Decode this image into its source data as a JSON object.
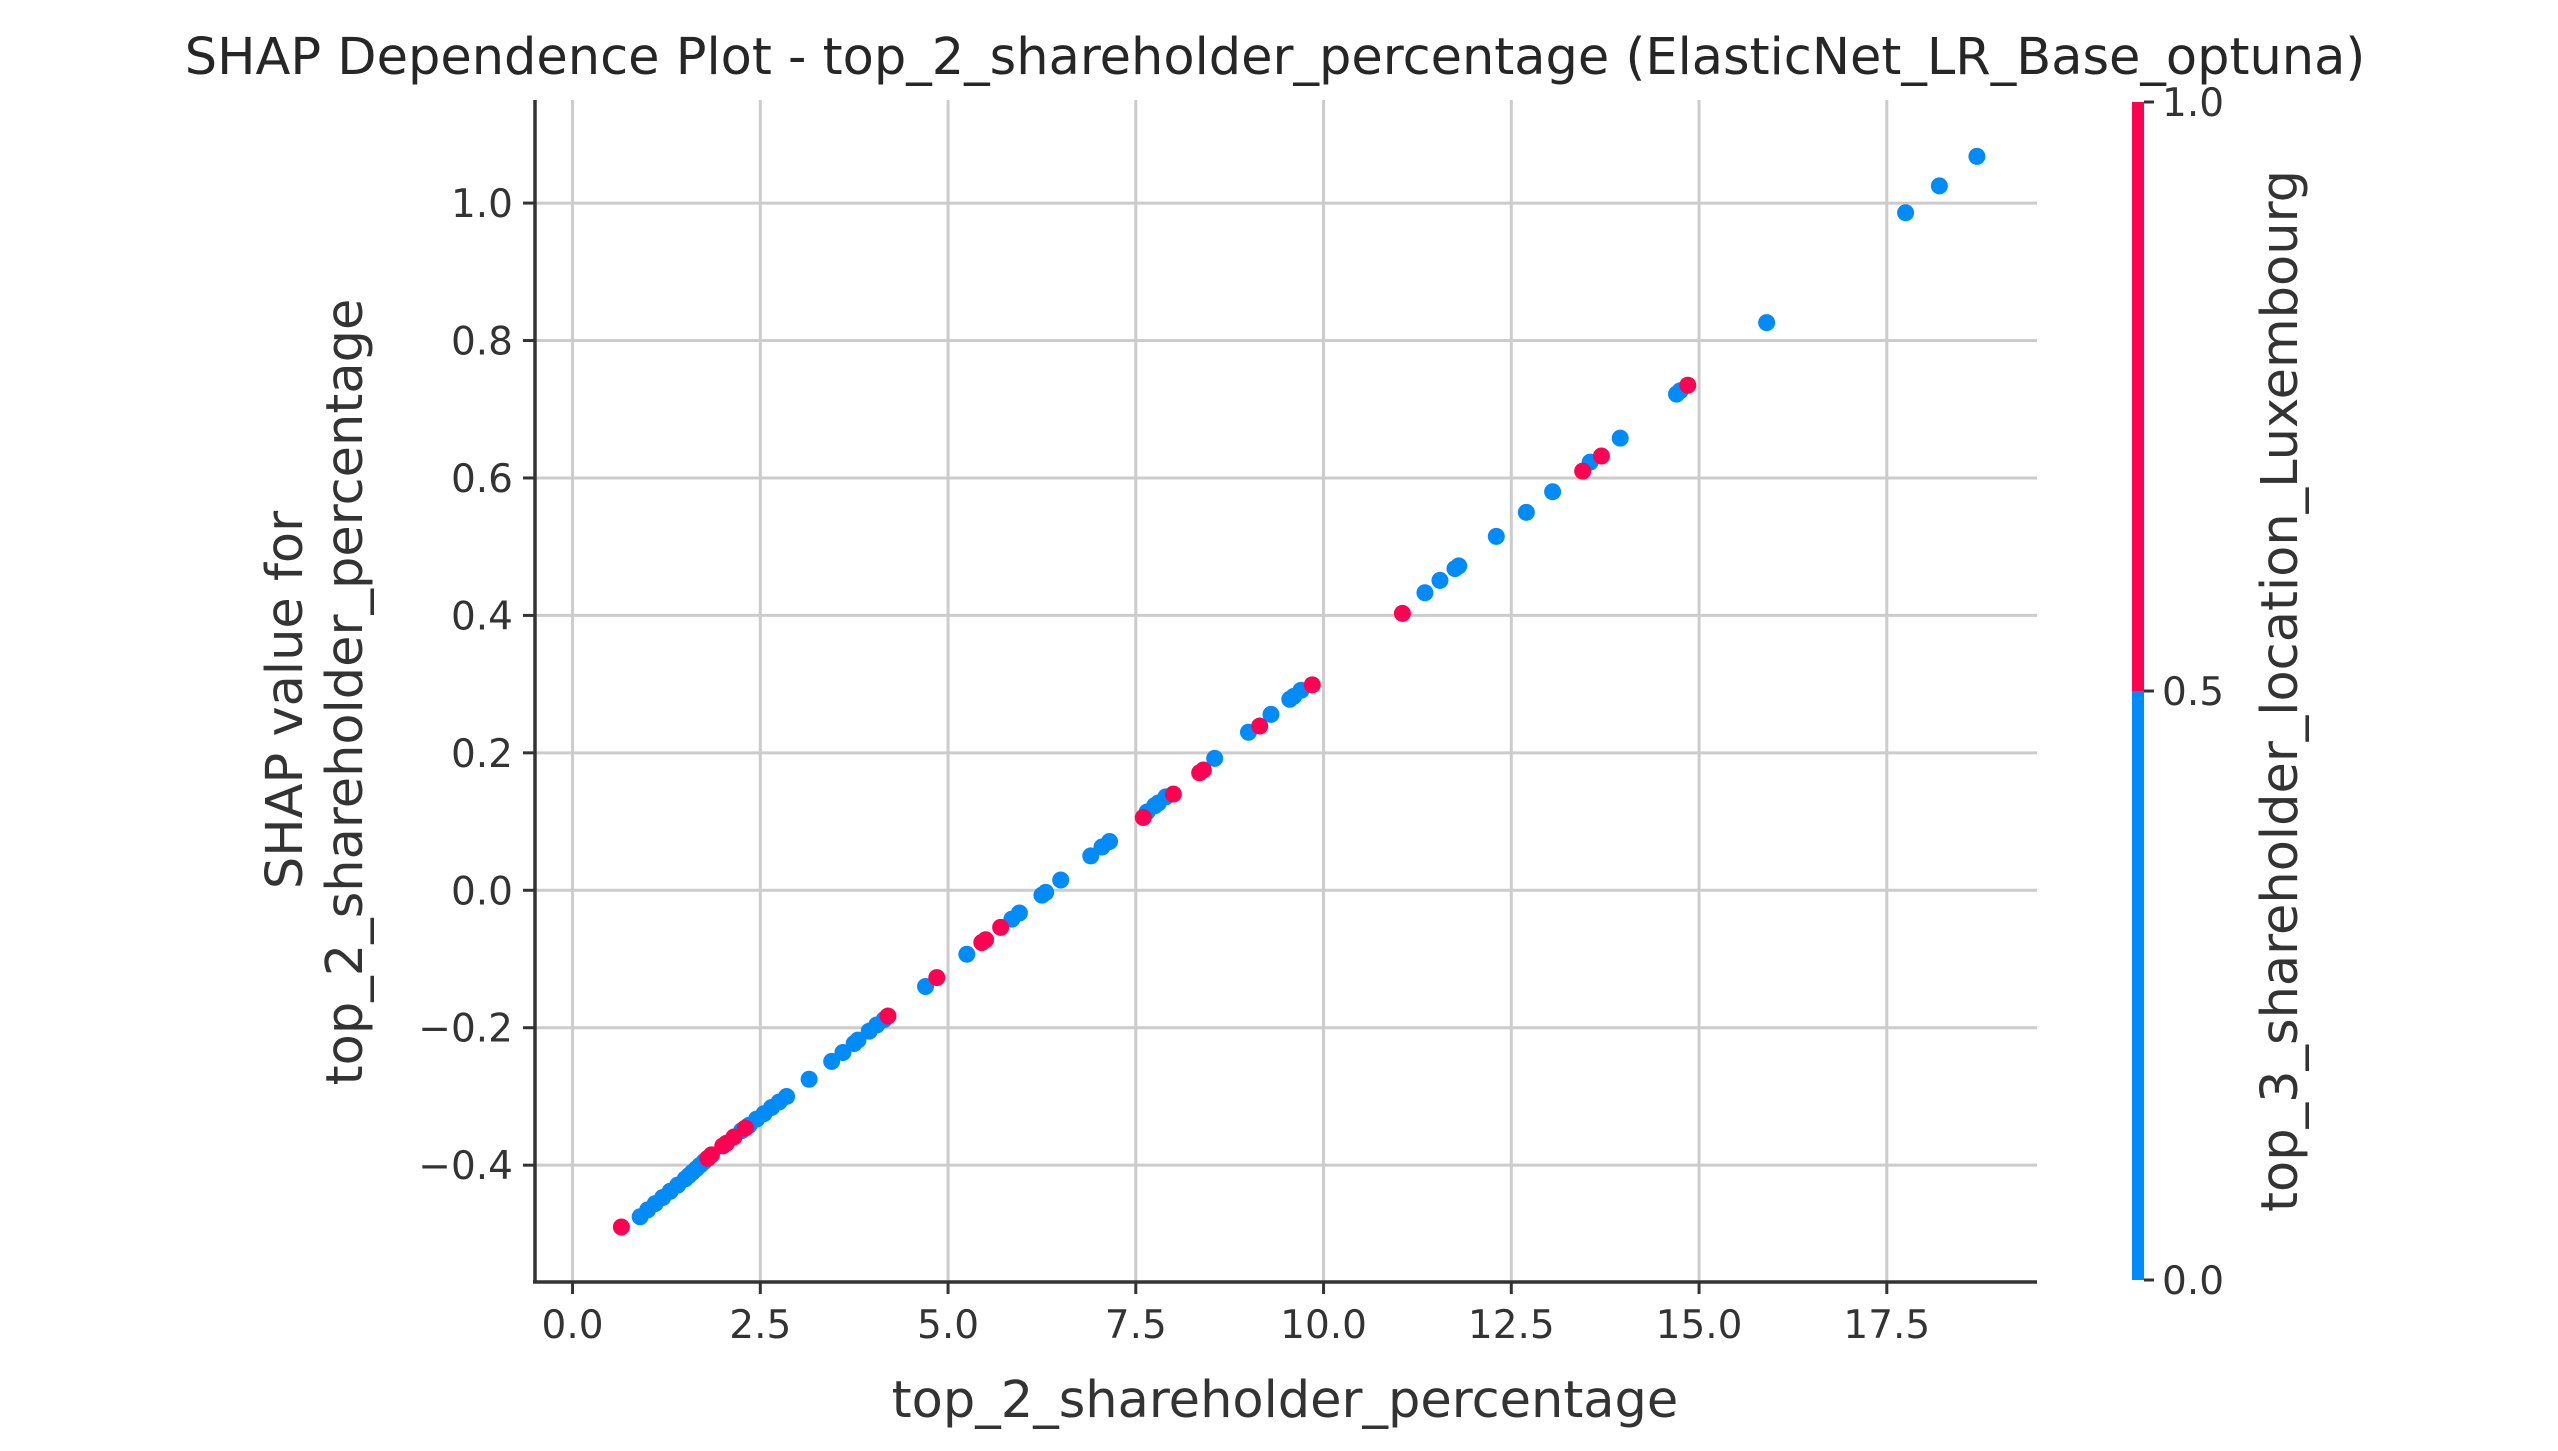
{
  "chart_data": {
    "type": "scatter",
    "title": "SHAP Dependence Plot - top_2_shareholder_percentage (ElasticNet_LR_Base_optuna)",
    "xlabel": "top_2_shareholder_percentage",
    "ylabel_lines": [
      "SHAP value for",
      "top_2_shareholder_percentage"
    ],
    "xlim": [
      -0.5,
      19.5
    ],
    "ylim": [
      -0.57,
      1.15
    ],
    "x_ticks": [
      0.0,
      2.5,
      5.0,
      7.5,
      10.0,
      12.5,
      15.0,
      17.5
    ],
    "x_tick_labels": [
      "0.0",
      "2.5",
      "5.0",
      "7.5",
      "10.0",
      "12.5",
      "15.0",
      "17.5"
    ],
    "y_ticks": [
      -0.4,
      -0.2,
      0.0,
      0.2,
      0.4,
      0.6,
      0.8,
      1.0
    ],
    "y_tick_labels": [
      "−0.4",
      "−0.2",
      "0.0",
      "0.2",
      "0.4",
      "0.6",
      "0.8",
      "1.0"
    ],
    "grid": true,
    "colorbar": {
      "label": "top_3_shareholder_location_Luxembourg",
      "range": [
        0.0,
        1.0
      ],
      "ticks": [
        0.0,
        0.5,
        1.0
      ],
      "tick_labels": [
        "0.0",
        "0.5",
        "1.0"
      ],
      "low_color": "#008bfb",
      "high_color": "#ff0052"
    },
    "series": [
      {
        "color_value": 0,
        "color": "#008bfb",
        "x": [
          0.9,
          1.0,
          1.1,
          1.2,
          1.3,
          1.4,
          1.5,
          1.55,
          1.6,
          1.65,
          1.7,
          1.75,
          2.25,
          2.35,
          2.45,
          2.55,
          2.65,
          2.75,
          2.85,
          3.15,
          3.45,
          3.6,
          3.75,
          3.8,
          3.95,
          4.05,
          4.15,
          4.7,
          5.25,
          5.45,
          5.85,
          5.95,
          6.25,
          6.3,
          6.5,
          6.9,
          7.05,
          7.15,
          7.65,
          7.75,
          7.8,
          7.9,
          8.55,
          9.0,
          9.3,
          9.55,
          9.6,
          9.7,
          11.35,
          11.55,
          11.75,
          11.8,
          12.3,
          12.7,
          13.05,
          13.55,
          13.95,
          14.7,
          14.75,
          15.9,
          17.75,
          18.2,
          18.7
        ],
        "y": [
          -0.475,
          -0.465,
          -0.456,
          -0.447,
          -0.438,
          -0.429,
          -0.42,
          -0.415,
          -0.41,
          -0.405,
          -0.4,
          -0.395,
          -0.35,
          -0.342,
          -0.333,
          -0.325,
          -0.316,
          -0.308,
          -0.3,
          -0.275,
          -0.249,
          -0.236,
          -0.223,
          -0.218,
          -0.205,
          -0.196,
          -0.188,
          -0.14,
          -0.093,
          -0.076,
          -0.042,
          -0.033,
          -0.007,
          -0.003,
          0.015,
          0.05,
          0.063,
          0.071,
          0.114,
          0.123,
          0.127,
          0.136,
          0.192,
          0.23,
          0.256,
          0.278,
          0.282,
          0.291,
          0.433,
          0.451,
          0.468,
          0.472,
          0.515,
          0.55,
          0.58,
          0.623,
          0.658,
          0.722,
          0.727,
          0.826,
          0.986,
          1.025,
          1.068
        ]
      },
      {
        "color_value": 1,
        "color": "#ff0052",
        "x": [
          0.65,
          1.8,
          1.85,
          2.0,
          2.05,
          2.15,
          2.3,
          4.2,
          4.85,
          5.45,
          5.5,
          5.7,
          7.6,
          8.0,
          8.35,
          8.4,
          9.15,
          9.85,
          11.05,
          13.45,
          13.7,
          14.85
        ],
        "y": [
          -0.49,
          -0.39,
          -0.385,
          -0.372,
          -0.368,
          -0.359,
          -0.346,
          -0.183,
          -0.127,
          -0.076,
          -0.072,
          -0.054,
          0.106,
          0.14,
          0.171,
          0.175,
          0.239,
          0.299,
          0.403,
          0.61,
          0.632,
          0.735
        ]
      }
    ]
  }
}
